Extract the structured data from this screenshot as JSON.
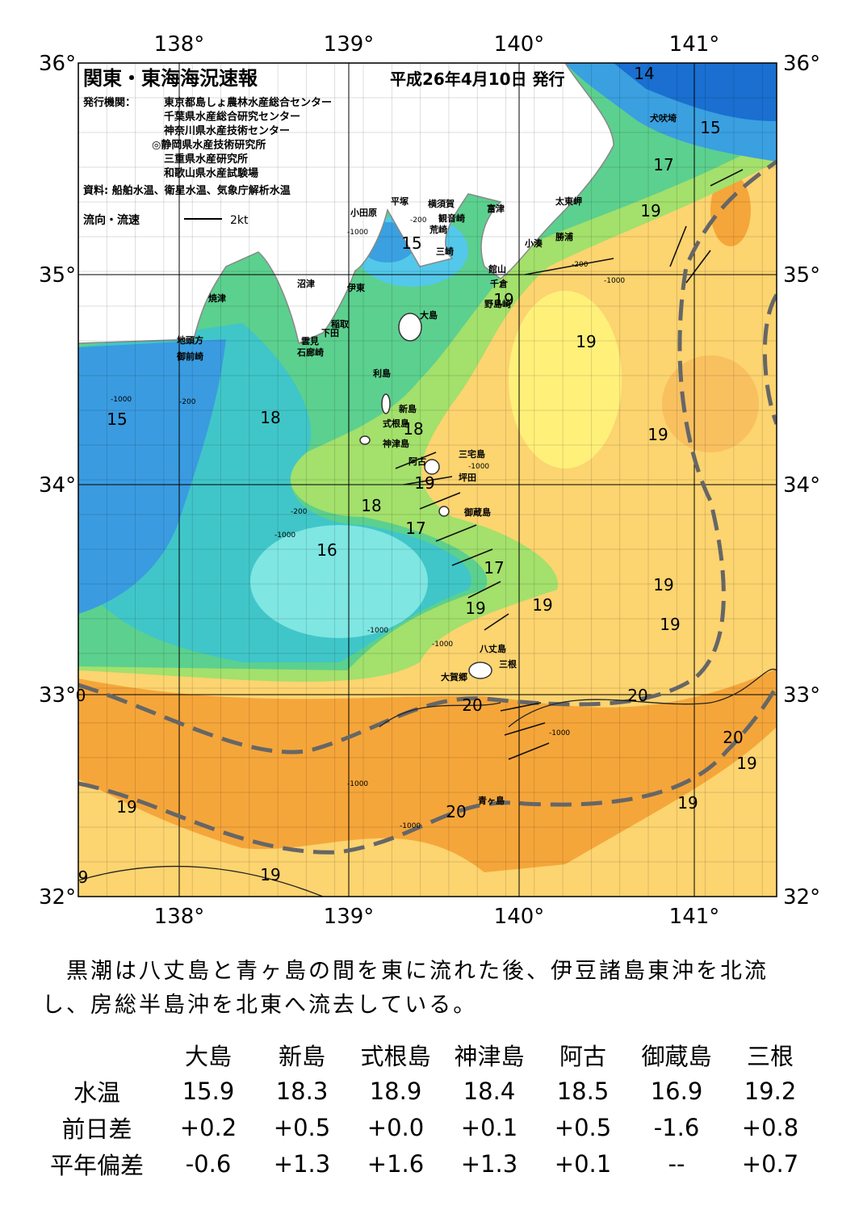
{
  "header": {
    "title": "関東・東海海況速報",
    "date": "平成26年4月10日 発行",
    "issuer_label": "発行機関：",
    "issuers": [
      "東京都島しょ農林水産総合センター",
      "千葉県水産総合研究センター",
      "神奈川県水産技術センター",
      "◎静岡県水産技術研究所",
      "三重県水産研究所",
      "和歌山県水産試験場"
    ],
    "source": "資料: 船舶水温、衛星水温、気象庁解析水温",
    "legend_label": "流向・流速",
    "legend_scale": "2kt"
  },
  "map": {
    "lon_labels": [
      "138°",
      "139°",
      "140°",
      "141°"
    ],
    "lat_labels": [
      "36°",
      "35°",
      "34°",
      "33°",
      "32°"
    ],
    "places": [
      "犬吠埼",
      "太東岬",
      "勝浦",
      "小湊",
      "富津",
      "館山",
      "千倉",
      "野島崎",
      "横須賀",
      "観音崎",
      "荒崎",
      "三崎",
      "平塚",
      "小田原",
      "沼津",
      "伊東",
      "稲取",
      "下田",
      "雲見",
      "石廊崎",
      "焼津",
      "地頭方",
      "御前崎",
      "大島",
      "利島",
      "新島",
      "式根島",
      "神津島",
      "三宅島",
      "阿古",
      "坪田",
      "御蔵島",
      "八丈島",
      "三根",
      "大賀郷",
      "青ヶ島"
    ],
    "isotherm_labels": [
      14,
      15,
      17,
      19,
      15,
      19,
      19,
      15,
      18,
      18,
      19,
      19,
      18,
      17,
      16,
      17,
      19,
      19,
      19,
      19,
      20,
      20,
      20,
      19,
      19,
      19,
      20,
      19,
      9,
      0
    ],
    "depth_labels": [
      "-1000",
      "-200",
      "-1000",
      "-200",
      "-1000",
      "-1000",
      "-200",
      "-1000",
      "-1000",
      "-200",
      "-1000",
      "-1000",
      "-1000",
      "-1000"
    ]
  },
  "text": {
    "lines": [
      "　黒潮は八丈島と青ヶ島の間を東に流れた後、伊豆諸島東沖を北流",
      "し、房総半島沖を北東へ流去している。"
    ]
  },
  "table": {
    "header": [
      "大島",
      "新島",
      "式根島",
      "神津島",
      "阿古",
      "御蔵島",
      "三根"
    ],
    "rows": [
      [
        "水温",
        "15.9",
        "18.3",
        "18.9",
        "18.4",
        "18.5",
        "16.9",
        "19.2"
      ],
      [
        "前日差",
        "+0.2",
        "+0.5",
        "+0.0",
        "+0.1",
        "+0.5",
        "-1.6",
        "+0.8"
      ],
      [
        "平年偏差",
        "-0.6",
        "+1.3",
        "+1.6",
        "+1.3",
        "+0.1",
        "--",
        "+0.7"
      ]
    ]
  }
}
